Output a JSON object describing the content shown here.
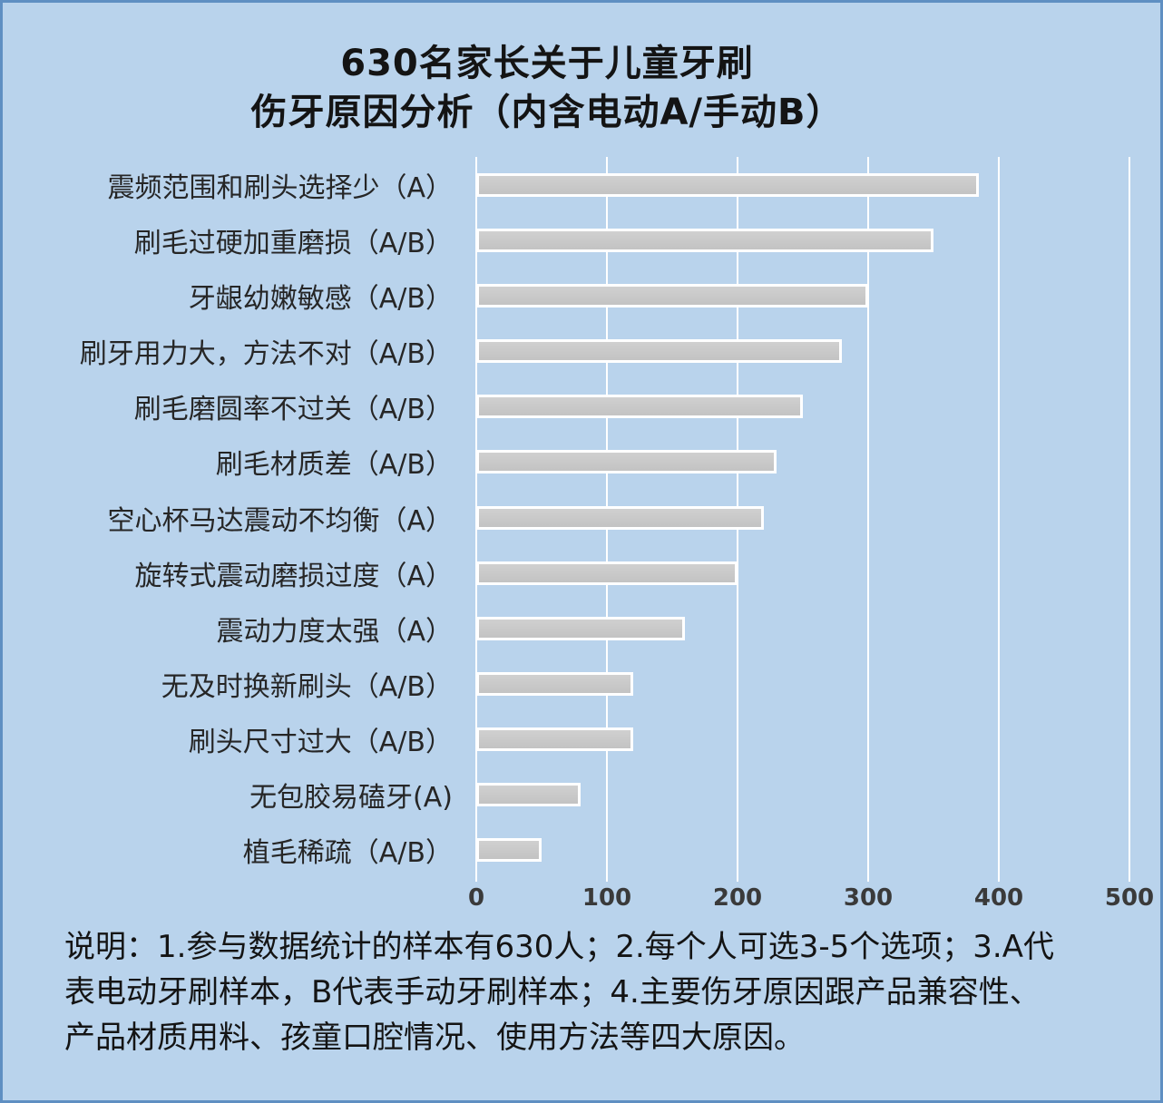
{
  "title": {
    "line1": "630名家长关于儿童牙刷",
    "line2": "伤牙原因分析（内含电动A/手动B）"
  },
  "chart_data": {
    "type": "bar",
    "orientation": "horizontal",
    "title": "630名家长关于儿童牙刷 伤牙原因分析（内含电动A/手动B）",
    "categories": [
      "震频范围和刷头选择少（A）",
      "刷毛过硬加重磨损（A/B）",
      "牙龈幼嫩敏感（A/B）",
      "刷牙用力大，方法不对（A/B）",
      "刷毛磨圆率不过关（A/B）",
      "刷毛材质差（A/B）",
      "空心杯马达震动不均衡（A）",
      "旋转式震动磨损过度（A）",
      "震动力度太强（A）",
      "无及时换新刷头（A/B）",
      "刷头尺寸过大（A/B）",
      "无包胶易磕牙(A)",
      "植毛稀疏（A/B）"
    ],
    "values": [
      385,
      350,
      300,
      280,
      250,
      230,
      220,
      200,
      160,
      120,
      120,
      80,
      50
    ],
    "xlabel": "",
    "ylabel": "",
    "xlim": [
      0,
      500
    ],
    "x_ticks": [
      0,
      100,
      200,
      300,
      400,
      500
    ],
    "grid": "vertical-white-gridlines",
    "legend": "none",
    "colors": {
      "background": "#b9d3ec",
      "frame_border": "#5f8fc2",
      "bar_fill": "#c9c9c9",
      "bar_border": "#ffffff",
      "gridline": "#ffffff",
      "text": "#141414"
    }
  },
  "footnote": {
    "lines": [
      "说明：1.参与数据统计的样本有630人；2.每个人可选3-5个选项；3.A代",
      "表电动牙刷样本，B代表手动牙刷样本；4.主要伤牙原因跟产品兼容性、",
      "产品材质用料、孩童口腔情况、使用方法等四大原因。"
    ]
  }
}
